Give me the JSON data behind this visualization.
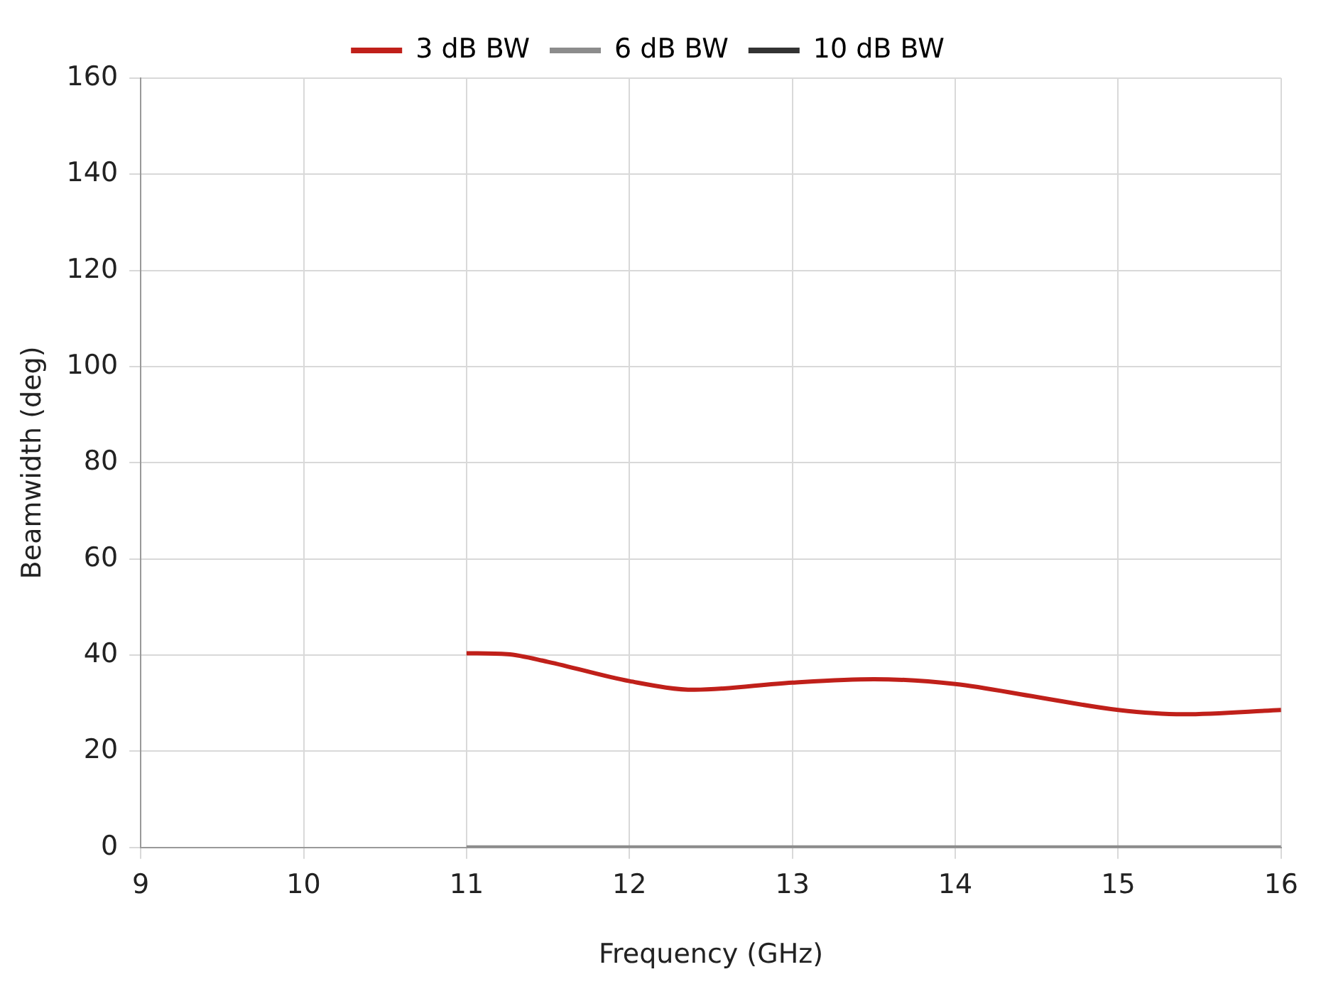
{
  "chart_data": {
    "type": "line",
    "xlabel": "Frequency (GHz)",
    "ylabel": "Beamwidth (deg)",
    "xlim": [
      9,
      16
    ],
    "xticks": [
      9,
      10,
      11,
      12,
      13,
      14,
      15,
      16
    ],
    "ylim": [
      0,
      160
    ],
    "yticks": [
      0,
      20,
      40,
      60,
      80,
      100,
      120,
      140,
      160
    ],
    "grid": true,
    "legend": "top",
    "marker": "none",
    "line_style": "solid",
    "series": [
      {
        "name": "3 dB BW",
        "color": "#c0201a",
        "x": [
          11,
          11.25,
          11.5,
          12,
          12.4,
          13,
          13.5,
          14,
          14.5,
          15,
          15.4,
          16
        ],
        "values": [
          40.4,
          40.2,
          38.6,
          34.6,
          32.8,
          34.3,
          35,
          34,
          31.3,
          28.6,
          27.7,
          28.6
        ]
      },
      {
        "name": "6 dB BW",
        "color": "#8c8c8c",
        "x": [
          11,
          12,
          13,
          14,
          15,
          16
        ],
        "values": [
          0,
          0,
          0,
          0,
          0,
          0
        ]
      },
      {
        "name": "10 dB BW",
        "color": "#333333"
      }
    ]
  }
}
